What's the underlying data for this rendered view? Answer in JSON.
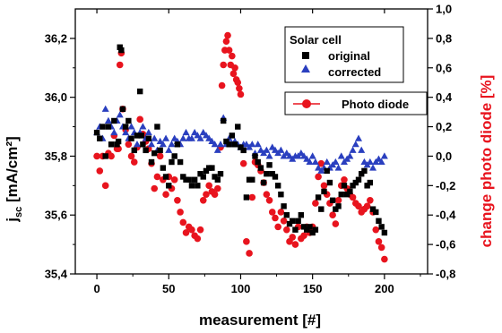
{
  "chart_data": {
    "type": "scatter",
    "xlabel": "measurement [#]",
    "ylabel_left_main": "j",
    "ylabel_left_sub": "sc",
    "ylabel_left_unit": " [mA/cm²]",
    "ylabel_right": "change photo diode [%]",
    "xlim": [
      -15,
      230
    ],
    "ylim_left": [
      35.4,
      36.3
    ],
    "ylim_right": [
      -0.8,
      1.0
    ],
    "x_ticks": [
      0,
      50,
      100,
      150,
      200
    ],
    "x_tick_labels": [
      "0",
      "50",
      "100",
      "150",
      "200"
    ],
    "y_left_ticks": [
      35.4,
      35.6,
      35.8,
      36.0,
      36.2
    ],
    "y_left_tick_labels": [
      "35,4",
      "35,6",
      "35,8",
      "36,0",
      "36,2"
    ],
    "y_right_ticks": [
      -0.8,
      -0.6,
      -0.4,
      -0.2,
      0.0,
      0.2,
      0.4,
      0.6,
      0.8,
      1.0
    ],
    "y_right_tick_labels": [
      "-0,8",
      "-0,6",
      "-0,4",
      "-0,2",
      "0,0",
      "0,2",
      "0,4",
      "0,6",
      "0,8",
      "1,0"
    ],
    "legend": {
      "group_title": "Solar cell",
      "original_label": "original",
      "corrected_label": "corrected",
      "photodiode_label": "Photo diode"
    },
    "colors": {
      "original": "#000000",
      "corrected": "#2a3fbf",
      "photodiode": "#e8141e",
      "right_axis_title": "#e8141e"
    },
    "series": [
      {
        "name": "original",
        "axis": "left",
        "marker": "square",
        "x": [
          0,
          2,
          4,
          6,
          8,
          10,
          12,
          14,
          15,
          16,
          17,
          18,
          20,
          22,
          24,
          26,
          28,
          30,
          31,
          32,
          34,
          36,
          38,
          40,
          42,
          44,
          46,
          48,
          50,
          52,
          54,
          56,
          58,
          60,
          62,
          64,
          66,
          68,
          70,
          72,
          74,
          76,
          78,
          80,
          82,
          84,
          86,
          88,
          90,
          92,
          94,
          96,
          98,
          100,
          102,
          104,
          106,
          108,
          110,
          112,
          114,
          116,
          118,
          120,
          122,
          124,
          126,
          128,
          130,
          132,
          134,
          136,
          138,
          140,
          142,
          144,
          146,
          148,
          150,
          152,
          154,
          156,
          158,
          160,
          162,
          164,
          166,
          168,
          170,
          172,
          174,
          176,
          178,
          180,
          182,
          184,
          186,
          188,
          190,
          192,
          194,
          196,
          198,
          200
        ],
        "y": [
          35.88,
          35.86,
          35.9,
          35.8,
          35.9,
          35.84,
          35.92,
          35.84,
          35.85,
          36.17,
          36.16,
          35.96,
          35.9,
          35.92,
          35.86,
          35.82,
          35.87,
          36.02,
          35.87,
          35.84,
          35.82,
          35.86,
          35.78,
          35.81,
          35.9,
          35.82,
          35.76,
          35.73,
          35.7,
          35.78,
          35.8,
          35.84,
          35.78,
          35.73,
          35.72,
          35.72,
          35.7,
          35.72,
          35.7,
          35.74,
          35.73,
          35.75,
          35.76,
          35.76,
          35.73,
          35.72,
          35.74,
          35.92,
          35.85,
          35.84,
          35.87,
          35.84,
          35.9,
          35.83,
          35.82,
          35.66,
          35.72,
          35.72,
          35.8,
          35.78,
          35.76,
          35.71,
          35.74,
          35.77,
          35.74,
          35.73,
          35.7,
          35.67,
          35.63,
          35.6,
          35.57,
          35.58,
          35.55,
          35.58,
          35.6,
          35.56,
          35.55,
          35.56,
          35.54,
          35.55,
          35.66,
          35.62,
          35.68,
          35.75,
          35.71,
          35.65,
          35.62,
          35.63,
          35.67,
          35.7,
          35.67,
          35.68,
          35.7,
          35.71,
          35.72,
          35.74,
          35.75,
          35.7,
          35.71,
          35.62,
          35.61,
          35.58,
          35.56,
          35.54
        ]
      },
      {
        "name": "corrected",
        "axis": "left",
        "marker": "triangle",
        "x": [
          0,
          2,
          4,
          6,
          8,
          10,
          12,
          14,
          16,
          18,
          20,
          22,
          24,
          26,
          28,
          30,
          32,
          34,
          36,
          38,
          40,
          42,
          44,
          46,
          48,
          50,
          52,
          54,
          56,
          58,
          60,
          62,
          64,
          66,
          68,
          70,
          72,
          74,
          76,
          78,
          80,
          82,
          84,
          86,
          88,
          90,
          92,
          94,
          96,
          98,
          100,
          102,
          104,
          106,
          108,
          110,
          112,
          114,
          116,
          118,
          120,
          122,
          124,
          126,
          128,
          130,
          132,
          134,
          136,
          138,
          140,
          142,
          144,
          146,
          148,
          150,
          152,
          154,
          156,
          158,
          160,
          162,
          164,
          166,
          168,
          170,
          172,
          174,
          176,
          178,
          180,
          182,
          184,
          186,
          188,
          190,
          192,
          194,
          196,
          198,
          200
        ],
        "y": [
          35.88,
          35.9,
          35.86,
          35.96,
          35.92,
          35.9,
          35.88,
          35.92,
          35.94,
          35.9,
          35.88,
          35.86,
          35.9,
          35.88,
          35.84,
          35.88,
          35.9,
          35.86,
          35.88,
          35.84,
          35.86,
          35.82,
          35.85,
          35.84,
          35.86,
          35.82,
          35.84,
          35.86,
          35.85,
          35.84,
          35.86,
          35.88,
          35.86,
          35.86,
          35.88,
          35.87,
          35.86,
          35.88,
          35.87,
          35.86,
          35.85,
          35.84,
          35.82,
          35.84,
          35.93,
          35.84,
          35.86,
          35.84,
          35.85,
          35.84,
          35.83,
          35.84,
          35.84,
          35.83,
          35.84,
          35.81,
          35.84,
          35.82,
          35.81,
          35.82,
          35.8,
          35.83,
          35.82,
          35.81,
          35.82,
          35.8,
          35.81,
          35.8,
          35.79,
          35.8,
          35.8,
          35.81,
          35.8,
          35.79,
          35.78,
          35.8,
          35.78,
          35.76,
          35.75,
          35.76,
          35.78,
          35.76,
          35.77,
          35.78,
          35.76,
          35.8,
          35.78,
          35.79,
          35.8,
          35.82,
          35.84,
          35.86,
          35.82,
          35.78,
          35.77,
          35.78,
          35.76,
          35.78,
          35.79,
          35.78,
          35.8
        ]
      },
      {
        "name": "Photo diode",
        "axis": "right",
        "marker": "circle",
        "x": [
          0,
          2,
          4,
          6,
          8,
          10,
          12,
          14,
          15,
          16,
          17,
          18,
          20,
          22,
          24,
          26,
          28,
          30,
          32,
          34,
          36,
          38,
          40,
          42,
          44,
          46,
          48,
          50,
          52,
          54,
          56,
          58,
          60,
          62,
          64,
          66,
          68,
          70,
          72,
          74,
          76,
          78,
          80,
          82,
          84,
          86,
          87,
          88,
          89,
          90,
          91,
          92,
          93,
          94,
          95,
          96,
          97,
          98,
          99,
          100,
          102,
          104,
          106,
          108,
          110,
          112,
          114,
          116,
          118,
          120,
          122,
          124,
          126,
          128,
          130,
          132,
          134,
          136,
          138,
          140,
          142,
          144,
          146,
          148,
          150,
          152,
          154,
          156,
          158,
          160,
          162,
          164,
          166,
          168,
          170,
          172,
          174,
          176,
          178,
          180,
          182,
          184,
          186,
          188,
          190,
          192,
          194,
          196,
          198,
          200
        ],
        "y": [
          0.0,
          -0.1,
          0.0,
          -0.2,
          0.02,
          0.0,
          0.14,
          0.05,
          0.05,
          0.62,
          0.7,
          0.32,
          0.18,
          0.08,
          0.0,
          -0.04,
          0.06,
          0.25,
          0.15,
          0.1,
          0.05,
          -0.05,
          -0.22,
          -0.14,
          0.0,
          -0.16,
          -0.26,
          -0.14,
          -0.22,
          -0.16,
          -0.3,
          -0.38,
          -0.45,
          -0.52,
          -0.48,
          -0.5,
          -0.54,
          -0.56,
          -0.5,
          -0.3,
          -0.26,
          -0.2,
          -0.24,
          -0.26,
          -0.22,
          0.06,
          0.48,
          0.62,
          0.72,
          0.78,
          0.82,
          0.72,
          0.62,
          0.68,
          0.56,
          0.6,
          0.52,
          0.5,
          0.46,
          0.42,
          -0.05,
          -0.58,
          -0.66,
          -0.28,
          -0.04,
          -0.06,
          -0.1,
          -0.18,
          -0.26,
          -0.3,
          -0.38,
          -0.42,
          -0.48,
          -0.38,
          -0.44,
          -0.5,
          -0.58,
          -0.55,
          -0.6,
          -0.48,
          -0.56,
          -0.54,
          -0.48,
          -0.52,
          -0.48,
          -0.32,
          -0.14,
          -0.05,
          -0.2,
          -0.26,
          -0.32,
          -0.4,
          -0.46,
          -0.3,
          -0.2,
          -0.16,
          -0.22,
          -0.26,
          -0.28,
          -0.32,
          -0.34,
          -0.38,
          -0.36,
          -0.34,
          -0.3,
          -0.38,
          -0.5,
          -0.58,
          -0.62,
          -0.7
        ]
      }
    ]
  }
}
